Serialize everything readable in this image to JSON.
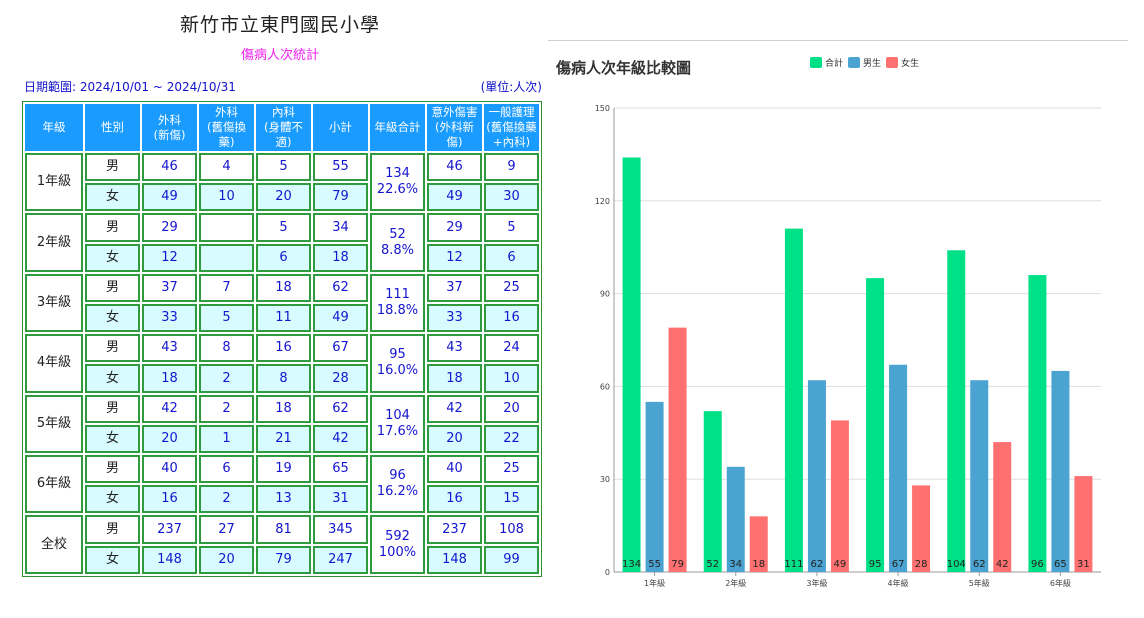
{
  "report": {
    "school_name": "新竹市立東門國民小學",
    "subtitle": "傷病人次統計",
    "date_range": "日期範圍: 2024/10/01 ~ 2024/10/31",
    "unit": "(單位:人次)"
  },
  "table": {
    "headers": [
      "年級",
      "性別",
      "外科\n(新傷)",
      "外科\n(舊傷換藥)",
      "內科\n(身體不適)",
      "小計",
      "年級合計",
      "意外傷害\n(外科新傷)",
      "一般護理\n(舊傷換藥\n+內科)"
    ],
    "groups": [
      {
        "grade": "1年級",
        "total": "134",
        "pct": "22.6%",
        "rows": [
          {
            "sex": "男",
            "surg_new": "46",
            "surg_old": "4",
            "internal": "5",
            "subtotal": "55",
            "accident": "46",
            "care": "9"
          },
          {
            "sex": "女",
            "surg_new": "49",
            "surg_old": "10",
            "internal": "20",
            "subtotal": "79",
            "accident": "49",
            "care": "30"
          }
        ]
      },
      {
        "grade": "2年級",
        "total": "52",
        "pct": "8.8%",
        "rows": [
          {
            "sex": "男",
            "surg_new": "29",
            "surg_old": "",
            "internal": "5",
            "subtotal": "34",
            "accident": "29",
            "care": "5"
          },
          {
            "sex": "女",
            "surg_new": "12",
            "surg_old": "",
            "internal": "6",
            "subtotal": "18",
            "accident": "12",
            "care": "6"
          }
        ]
      },
      {
        "grade": "3年級",
        "total": "111",
        "pct": "18.8%",
        "rows": [
          {
            "sex": "男",
            "surg_new": "37",
            "surg_old": "7",
            "internal": "18",
            "subtotal": "62",
            "accident": "37",
            "care": "25"
          },
          {
            "sex": "女",
            "surg_new": "33",
            "surg_old": "5",
            "internal": "11",
            "subtotal": "49",
            "accident": "33",
            "care": "16"
          }
        ]
      },
      {
        "grade": "4年級",
        "total": "95",
        "pct": "16.0%",
        "rows": [
          {
            "sex": "男",
            "surg_new": "43",
            "surg_old": "8",
            "internal": "16",
            "subtotal": "67",
            "accident": "43",
            "care": "24"
          },
          {
            "sex": "女",
            "surg_new": "18",
            "surg_old": "2",
            "internal": "8",
            "subtotal": "28",
            "accident": "18",
            "care": "10"
          }
        ]
      },
      {
        "grade": "5年級",
        "total": "104",
        "pct": "17.6%",
        "rows": [
          {
            "sex": "男",
            "surg_new": "42",
            "surg_old": "2",
            "internal": "18",
            "subtotal": "62",
            "accident": "42",
            "care": "20"
          },
          {
            "sex": "女",
            "surg_new": "20",
            "surg_old": "1",
            "internal": "21",
            "subtotal": "42",
            "accident": "20",
            "care": "22"
          }
        ]
      },
      {
        "grade": "6年級",
        "total": "96",
        "pct": "16.2%",
        "rows": [
          {
            "sex": "男",
            "surg_new": "40",
            "surg_old": "6",
            "internal": "19",
            "subtotal": "65",
            "accident": "40",
            "care": "25"
          },
          {
            "sex": "女",
            "surg_new": "16",
            "surg_old": "2",
            "internal": "13",
            "subtotal": "31",
            "accident": "16",
            "care": "15"
          }
        ]
      },
      {
        "grade": "全校",
        "total": "592",
        "pct": "100%",
        "rows": [
          {
            "sex": "男",
            "surg_new": "237",
            "surg_old": "27",
            "internal": "81",
            "subtotal": "345",
            "accident": "237",
            "care": "108"
          },
          {
            "sex": "女",
            "surg_new": "148",
            "surg_old": "20",
            "internal": "79",
            "subtotal": "247",
            "accident": "148",
            "care": "99"
          }
        ]
      }
    ]
  },
  "chart_data": {
    "type": "bar",
    "title": "傷病人次年級比較圖",
    "xlabel": "",
    "ylabel": "",
    "categories": [
      "1年級",
      "2年級",
      "3年級",
      "4年級",
      "5年級",
      "6年級"
    ],
    "series": [
      {
        "name": "合計",
        "color": "#00e086",
        "values": [
          134,
          52,
          111,
          95,
          104,
          96
        ]
      },
      {
        "name": "男生",
        "color": "#4aa3d0",
        "values": [
          55,
          34,
          62,
          67,
          62,
          65
        ]
      },
      {
        "name": "女生",
        "color": "#ff7070",
        "values": [
          79,
          18,
          49,
          28,
          42,
          31
        ]
      }
    ],
    "ylim": [
      0,
      150
    ],
    "yticks": [
      0,
      30,
      60,
      90,
      120,
      150
    ],
    "grid": true,
    "legend": "top-center",
    "data_labels": "inside-bottom"
  }
}
